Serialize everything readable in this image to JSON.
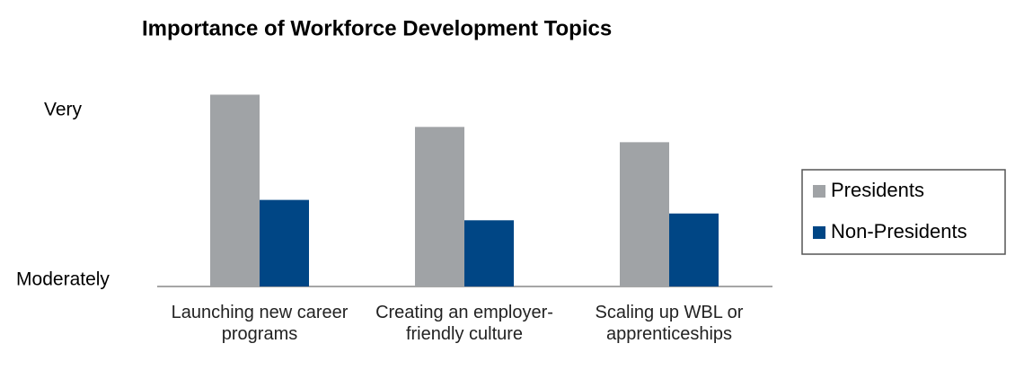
{
  "chart_data": {
    "type": "bar",
    "title": "Importance of Workforce Development Topics",
    "categories": [
      "Launching new career programs",
      "Creating an employer-friendly culture",
      "Scaling up WBL or apprenticeships"
    ],
    "series": [
      {
        "name": "Presidents",
        "color": "#a0a3a6",
        "values": [
          4.13,
          3.94,
          3.85
        ]
      },
      {
        "name": "Non-Presidents",
        "color": "#004685",
        "values": [
          3.51,
          3.39,
          3.43
        ]
      }
    ],
    "ylim": [
      3,
      4.2
    ],
    "yticks": [
      {
        "value": 3,
        "label": "Moderately"
      },
      {
        "value": 4,
        "label": "Very"
      }
    ],
    "grid": false,
    "legend": "right"
  }
}
